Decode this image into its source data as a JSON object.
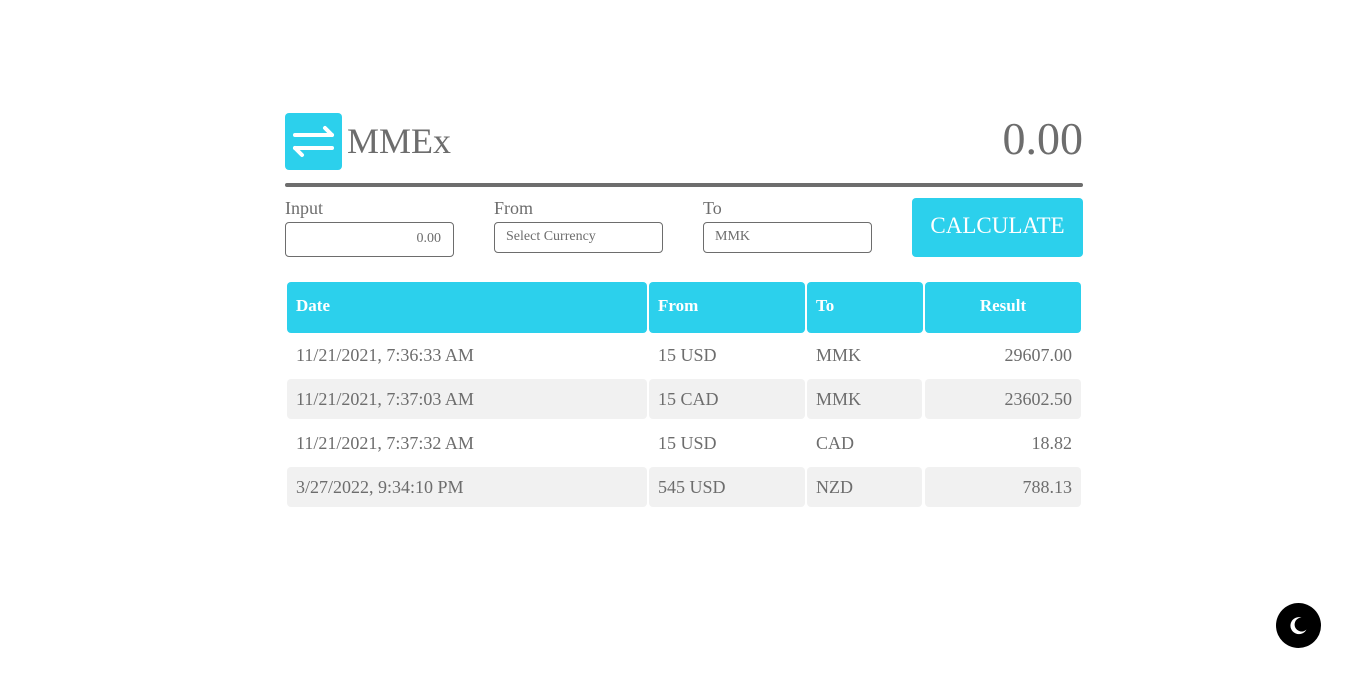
{
  "header": {
    "logo_icon": "swap-arrows-icon",
    "brand": "MMEx",
    "total": "0.00"
  },
  "form": {
    "input": {
      "label": "Input",
      "value": "0.00"
    },
    "from": {
      "label": "From",
      "value": "Select Currency"
    },
    "to": {
      "label": "To",
      "value": "MMK"
    },
    "calculate_label": "CALCULATE"
  },
  "table": {
    "headers": {
      "date": "Date",
      "from": "From",
      "to": "To",
      "result": "Result"
    },
    "rows": [
      {
        "date": "11/21/2021, 7:36:33 AM",
        "from": "15 USD",
        "to": "MMK",
        "result": "29607.00"
      },
      {
        "date": "11/21/2021, 7:37:03 AM",
        "from": "15 CAD",
        "to": "MMK",
        "result": "23602.50"
      },
      {
        "date": "11/21/2021, 7:37:32 AM",
        "from": "15 USD",
        "to": "CAD",
        "result": "18.82"
      },
      {
        "date": "3/27/2022, 9:34:10 PM",
        "from": "545 USD",
        "to": "NZD",
        "result": "788.13"
      }
    ]
  },
  "theme_toggle": {
    "icon": "moon-icon"
  },
  "colors": {
    "accent": "#2cd0ec",
    "text": "#6d6d6d",
    "row_shade": "#f1f1f1",
    "toggle_bg": "#000000"
  }
}
